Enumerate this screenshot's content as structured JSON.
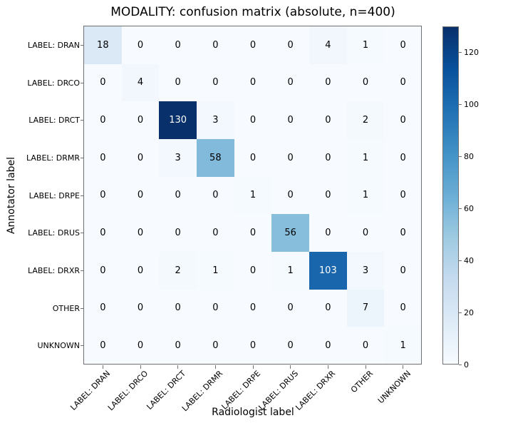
{
  "figure": {
    "background": "#ffffff",
    "frame_color": "#707070",
    "text_color": "#000000"
  },
  "chart_data": {
    "type": "heatmap",
    "title": "MODALITY: confusion matrix (absolute, n=400)",
    "xlabel": "Radiologist label",
    "ylabel": "Annotator label",
    "x_categories": [
      "LABEL: DRAN",
      "LABEL: DRCO",
      "LABEL: DRCT",
      "LABEL: DRMR",
      "LABEL: DRPE",
      "LABEL: DRUS",
      "LABEL: DRXR",
      "OTHER",
      "UNKNOWN"
    ],
    "y_categories": [
      "LABEL: DRAN",
      "LABEL: DRCO",
      "LABEL: DRCT",
      "LABEL: DRMR",
      "LABEL: DRPE",
      "LABEL: DRUS",
      "LABEL: DRXR",
      "OTHER",
      "UNKNOWN"
    ],
    "values": [
      [
        18,
        0,
        0,
        0,
        0,
        0,
        4,
        1,
        0
      ],
      [
        0,
        4,
        0,
        0,
        0,
        0,
        0,
        0,
        0
      ],
      [
        0,
        0,
        130,
        3,
        0,
        0,
        0,
        2,
        0
      ],
      [
        0,
        0,
        3,
        58,
        0,
        0,
        0,
        1,
        0
      ],
      [
        0,
        0,
        0,
        0,
        1,
        0,
        0,
        1,
        0
      ],
      [
        0,
        0,
        0,
        0,
        0,
        56,
        0,
        0,
        0
      ],
      [
        0,
        0,
        2,
        1,
        0,
        1,
        103,
        3,
        0
      ],
      [
        0,
        0,
        0,
        0,
        0,
        0,
        0,
        7,
        0
      ],
      [
        0,
        0,
        0,
        0,
        0,
        0,
        0,
        0,
        1
      ]
    ],
    "vmin": 0,
    "vmax": 130,
    "colormap": "Blues",
    "colormap_stops": [
      {
        "t": 0.0,
        "color": "#f7fbff"
      },
      {
        "t": 0.125,
        "color": "#deebf7"
      },
      {
        "t": 0.25,
        "color": "#c6dbef"
      },
      {
        "t": 0.375,
        "color": "#9ecae1"
      },
      {
        "t": 0.5,
        "color": "#6baed6"
      },
      {
        "t": 0.625,
        "color": "#4292c6"
      },
      {
        "t": 0.75,
        "color": "#2171b5"
      },
      {
        "t": 0.875,
        "color": "#08519c"
      },
      {
        "t": 1.0,
        "color": "#08306b"
      }
    ],
    "colorbar_ticks": [
      0,
      20,
      40,
      60,
      80,
      100,
      120
    ],
    "colorbar_position": "right",
    "annotation_color_threshold": 65,
    "annotation_colors": {
      "low": "#000000",
      "high": "#ffffff"
    },
    "grid": false
  }
}
